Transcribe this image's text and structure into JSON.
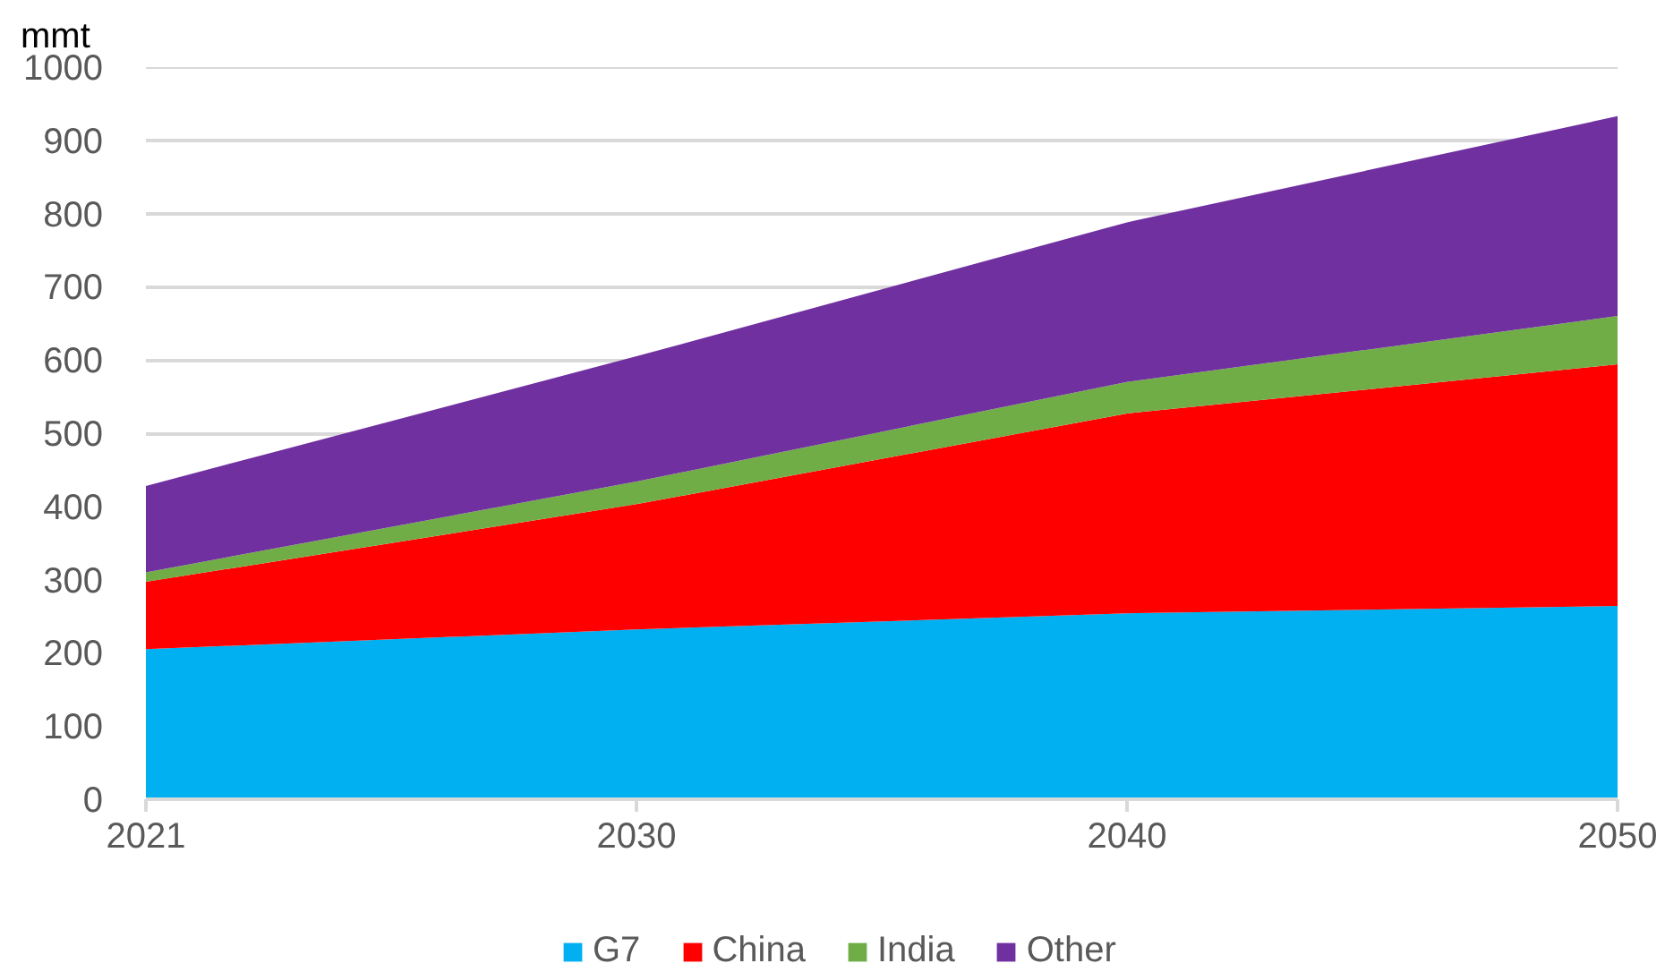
{
  "chart_data": {
    "type": "area",
    "stacked": true,
    "ylabel": "mmt",
    "categories": [
      "2021",
      "2030",
      "2040",
      "2050"
    ],
    "series": [
      {
        "name": "G7",
        "color": "#00b0f0",
        "values": [
          205,
          232,
          254,
          264
        ]
      },
      {
        "name": "China",
        "color": "#ff0000",
        "values": [
          92,
          171,
          273,
          330
        ]
      },
      {
        "name": "India",
        "color": "#70ad47",
        "values": [
          13,
          31,
          43,
          66
        ]
      },
      {
        "name": "Other",
        "color": "#7030a0",
        "values": [
          118,
          171,
          218,
          273
        ]
      }
    ],
    "ylim": [
      0,
      1000
    ],
    "yticks": [
      0,
      100,
      200,
      300,
      400,
      500,
      600,
      700,
      800,
      900,
      1000
    ],
    "grid": "y",
    "legend": "bottom"
  }
}
